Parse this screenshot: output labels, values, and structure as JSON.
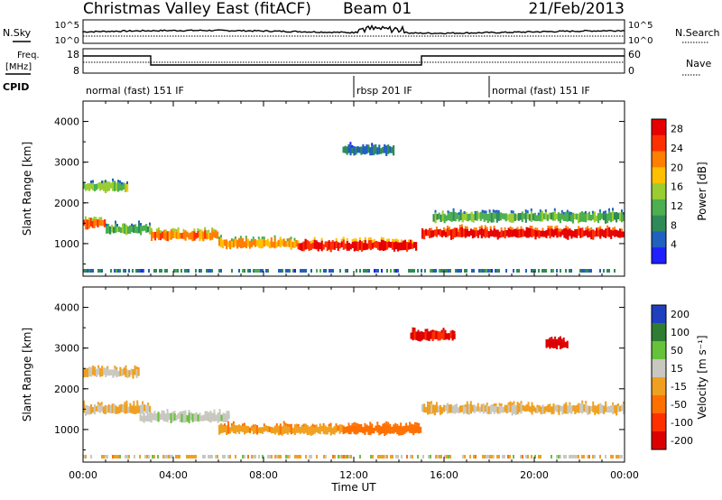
{
  "header": {
    "title": "Christmas Valley East (fitACF)",
    "beam": "Beam 01",
    "date": "21/Feb/2013"
  },
  "strip_labels": {
    "nsky": "N.Sky",
    "nsearch": "N.Search",
    "freq": "Freq.",
    "freq_unit": "[MHz]",
    "nave": "Nave",
    "cpid": "CPID"
  },
  "strip_ticks": {
    "noise_left": [
      "10^5",
      "10^0"
    ],
    "noise_right": [
      "10^5",
      "10^0"
    ],
    "freq_left": [
      "18",
      "8"
    ],
    "nave_right": [
      "60",
      "0"
    ]
  },
  "cpid_segments": [
    {
      "label": "normal (fast) 151 IF",
      "start_h": 0,
      "end_h": 12
    },
    {
      "label": "rbsp 201 IF",
      "start_h": 12,
      "end_h": 18
    },
    {
      "label": "normal (fast) 151 IF",
      "start_h": 18,
      "end_h": 24
    }
  ],
  "colors": {
    "power": [
      "#1f1fff",
      "#2060c0",
      "#2e8b57",
      "#4caf50",
      "#9acd32",
      "#ffc000",
      "#ff7f00",
      "#ff3000",
      "#e60000"
    ],
    "velocity": [
      "#1f3fbf",
      "#2e7d32",
      "#66c23a",
      "#c8c8c0",
      "#f0a020",
      "#ff7000",
      "#ff3000",
      "#dd0000"
    ]
  },
  "chart_data": [
    {
      "type": "heatmap",
      "name": "power",
      "ylabel": "Slant Range [km]",
      "xlabel": "",
      "xlim": [
        0,
        24
      ],
      "ylim": [
        200,
        4500
      ],
      "x_ticks": [
        "00:00",
        "04:00",
        "08:00",
        "12:00",
        "16:00",
        "20:00",
        "00:00"
      ],
      "y_ticks": [
        "1000",
        "2000",
        "3000",
        "4000"
      ],
      "y_tick_values": [
        1000,
        2000,
        3000,
        4000
      ],
      "colorbar": {
        "label": "Power [dB]",
        "ticks": [
          "4",
          "8",
          "12",
          "16",
          "20",
          "24",
          "28"
        ],
        "range": [
          0,
          30
        ]
      },
      "features": [
        {
          "start_h": 0.0,
          "end_h": 1.0,
          "range_km": 1500,
          "value": 24
        },
        {
          "start_h": 1.0,
          "end_h": 3.0,
          "range_km": 1350,
          "value": 12
        },
        {
          "start_h": 3.0,
          "end_h": 6.0,
          "range_km": 1200,
          "value": 22
        },
        {
          "start_h": 6.0,
          "end_h": 9.5,
          "range_km": 1000,
          "value": 20
        },
        {
          "start_h": 9.5,
          "end_h": 14.8,
          "range_km": 950,
          "value": 27
        },
        {
          "start_h": 15.0,
          "end_h": 24.0,
          "range_km": 1250,
          "value": 28
        },
        {
          "start_h": 15.5,
          "end_h": 24.0,
          "range_km": 1650,
          "value": 12
        },
        {
          "start_h": 11.5,
          "end_h": 13.8,
          "range_km": 3300,
          "value": 7
        },
        {
          "start_h": 0.0,
          "end_h": 2.0,
          "range_km": 2400,
          "value": 14
        }
      ]
    },
    {
      "type": "heatmap",
      "name": "velocity",
      "ylabel": "Slant Range [km]",
      "xlabel": "Time UT",
      "xlim": [
        0,
        24
      ],
      "ylim": [
        200,
        4500
      ],
      "x_ticks": [
        "00:00",
        "04:00",
        "08:00",
        "12:00",
        "16:00",
        "20:00",
        "00:00"
      ],
      "y_ticks": [
        "1000",
        "2000",
        "3000",
        "4000"
      ],
      "y_tick_values": [
        1000,
        2000,
        3000,
        4000
      ],
      "colorbar": {
        "label": "Velocity [m s⁻¹]",
        "ticks": [
          "200",
          "100",
          "50",
          "15",
          "-15",
          "-50",
          "-100",
          "-200"
        ]
      },
      "features": [
        {
          "start_h": 0.0,
          "end_h": 3.0,
          "range_km": 1500,
          "value": 0
        },
        {
          "start_h": 2.5,
          "end_h": 6.5,
          "range_km": 1300,
          "value": 30
        },
        {
          "start_h": 6.0,
          "end_h": 11.5,
          "range_km": 1000,
          "value": -30
        },
        {
          "start_h": 11.5,
          "end_h": 15.0,
          "range_km": 1000,
          "value": -60
        },
        {
          "start_h": 15.0,
          "end_h": 24.0,
          "range_km": 1500,
          "value": 0
        },
        {
          "start_h": 0.0,
          "end_h": 2.5,
          "range_km": 2400,
          "value": 0
        },
        {
          "start_h": 14.5,
          "end_h": 16.5,
          "range_km": 3300,
          "value": -150
        },
        {
          "start_h": 20.5,
          "end_h": 21.5,
          "range_km": 3100,
          "value": -200
        }
      ]
    }
  ]
}
